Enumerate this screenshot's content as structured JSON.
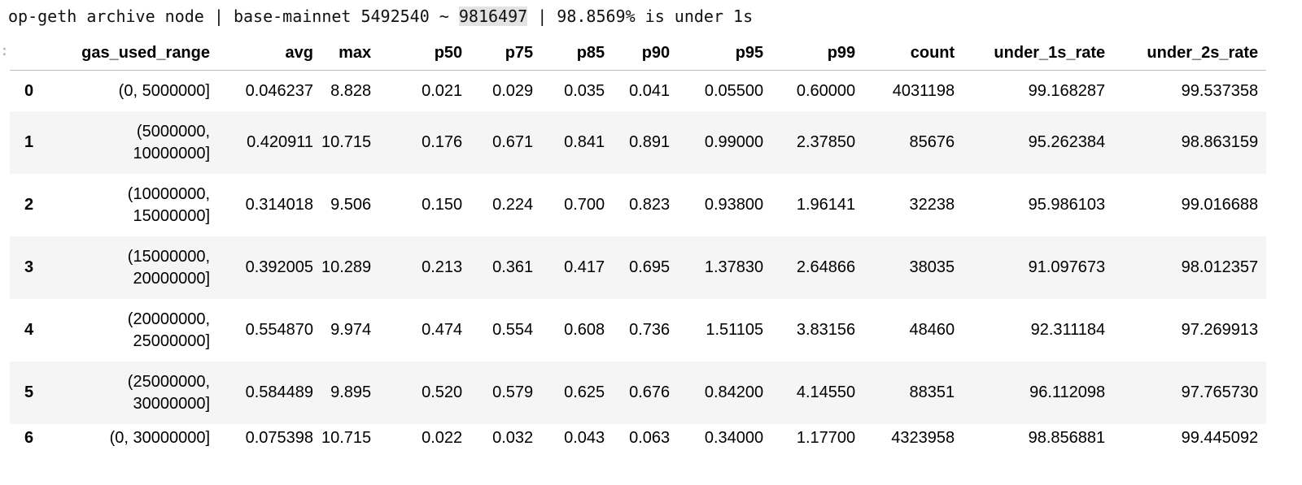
{
  "title": {
    "prefix": "op-geth archive node | base-mainnet 5492540 ~ ",
    "highlighted": "9816497",
    "suffix": " | 98.8569% is under 1s"
  },
  "gutter_marker": ":",
  "table": {
    "columns": [
      "",
      "gas_used_range",
      "avg",
      "max",
      "p50",
      "p75",
      "p85",
      "p90",
      "p95",
      "p99",
      "count",
      "under_1s_rate",
      "under_2s_rate"
    ],
    "rows": [
      [
        "0",
        "(0, 5000000]",
        "0.046237",
        "8.828",
        "0.021",
        "0.029",
        "0.035",
        "0.041",
        "0.05500",
        "0.60000",
        "4031198",
        "99.168287",
        "99.537358"
      ],
      [
        "1",
        "(5000000, 10000000]",
        "0.420911",
        "10.715",
        "0.176",
        "0.671",
        "0.841",
        "0.891",
        "0.99000",
        "2.37850",
        "85676",
        "95.262384",
        "98.863159"
      ],
      [
        "2",
        "(10000000, 15000000]",
        "0.314018",
        "9.506",
        "0.150",
        "0.224",
        "0.700",
        "0.823",
        "0.93800",
        "1.96141",
        "32238",
        "95.986103",
        "99.016688"
      ],
      [
        "3",
        "(15000000, 20000000]",
        "0.392005",
        "10.289",
        "0.213",
        "0.361",
        "0.417",
        "0.695",
        "1.37830",
        "2.64866",
        "38035",
        "91.097673",
        "98.012357"
      ],
      [
        "4",
        "(20000000, 25000000]",
        "0.554870",
        "9.974",
        "0.474",
        "0.554",
        "0.608",
        "0.736",
        "1.51105",
        "3.83156",
        "48460",
        "92.311184",
        "97.269913"
      ],
      [
        "5",
        "(25000000, 30000000]",
        "0.584489",
        "9.895",
        "0.520",
        "0.579",
        "0.625",
        "0.676",
        "0.84200",
        "4.14550",
        "88351",
        "96.112098",
        "97.765730"
      ],
      [
        "6",
        "(0, 30000000]",
        "0.075398",
        "10.715",
        "0.022",
        "0.032",
        "0.043",
        "0.063",
        "0.34000",
        "1.17700",
        "4323958",
        "98.856881",
        "99.445092"
      ]
    ]
  }
}
